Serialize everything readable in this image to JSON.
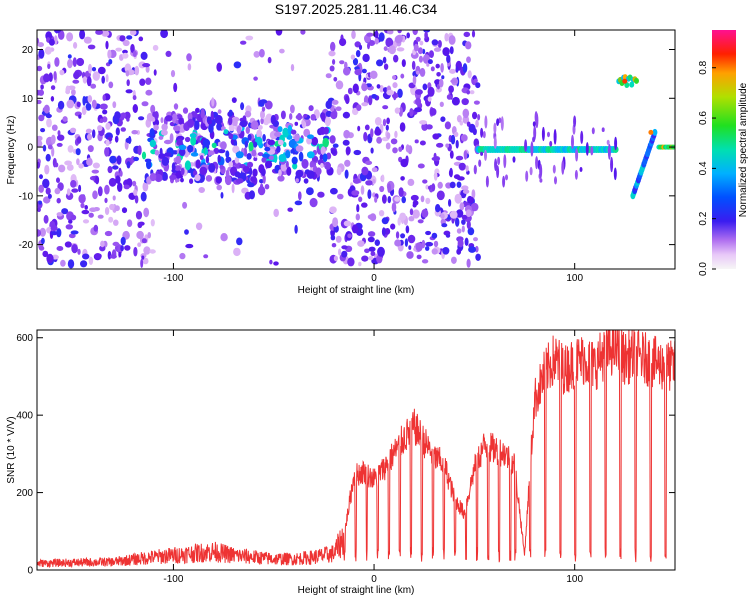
{
  "title": "S197.2025.281.11.46.C34",
  "colors": {
    "snr_line": "#ee3333",
    "spec_low": "#e6d2fa",
    "spec_mid": "#7722ee",
    "spec_peak": "#00e0c0"
  },
  "chart_data": [
    {
      "type": "heatmap",
      "name": "spectrogram",
      "xlabel": "Height of straight line (km)",
      "ylabel": "Frequency (Hz)",
      "xlim": [
        -168,
        150
      ],
      "ylim": [
        -25,
        24
      ],
      "xticks": [
        -100,
        0,
        100
      ],
      "yticks": [
        -20,
        -10,
        0,
        10,
        20
      ],
      "grid": false,
      "features": [
        {
          "label": "noise",
          "x_range": [
            -168,
            52
          ],
          "freq_center": 0,
          "freq_spread": 24
        },
        {
          "label": "carrier",
          "x_range": [
            52,
            121
          ],
          "freq_center": -0.5,
          "freq_spread": 1.5
        },
        {
          "label": "high_tone",
          "x_range": [
            122,
            131
          ],
          "freq_center": 13.5,
          "freq_spread": 2
        },
        {
          "label": "sweep",
          "x_range": [
            129,
            140
          ],
          "freq_start": -10,
          "freq_end": 3
        },
        {
          "label": "low_tone",
          "x_range": [
            142,
            150
          ],
          "freq_center": 0,
          "freq_spread": 1
        }
      ],
      "colorbar": {
        "label": "Normalized spectral amplitude",
        "range": [
          0,
          0.95
        ],
        "ticks": [
          "0.0",
          "0.2",
          "0.4",
          "0.6",
          "0.8"
        ],
        "tick_values": [
          0,
          0.2,
          0.4,
          0.6,
          0.8
        ]
      }
    },
    {
      "type": "line",
      "name": "snr",
      "xlabel": "Height of straight line (km)",
      "ylabel": "SNR (10 * V/V)",
      "xlim": [
        -168,
        150
      ],
      "ylim": [
        0,
        620
      ],
      "xticks": [
        -100,
        0,
        100
      ],
      "yticks": [
        0,
        200,
        400,
        600
      ],
      "grid": false,
      "series": [
        {
          "name": "SNR",
          "x": [
            -168,
            -150,
            -130,
            -110,
            -100,
            -90,
            -80,
            -70,
            -60,
            -50,
            -40,
            -30,
            -20,
            -15,
            -10,
            -5,
            0,
            5,
            10,
            15,
            20,
            25,
            30,
            35,
            40,
            45,
            50,
            55,
            60,
            65,
            70,
            75,
            80,
            85,
            90,
            95,
            100,
            105,
            110,
            115,
            120,
            125,
            130,
            135,
            140,
            145,
            150
          ],
          "values": [
            18,
            20,
            22,
            35,
            40,
            45,
            50,
            40,
            35,
            30,
            30,
            35,
            45,
            90,
            250,
            260,
            240,
            270,
            310,
            350,
            380,
            340,
            300,
            280,
            190,
            150,
            270,
            330,
            320,
            310,
            280,
            40,
            450,
            520,
            560,
            530,
            550,
            560,
            540,
            580,
            590,
            560,
            570,
            560,
            550,
            540,
            540
          ]
        }
      ]
    }
  ]
}
